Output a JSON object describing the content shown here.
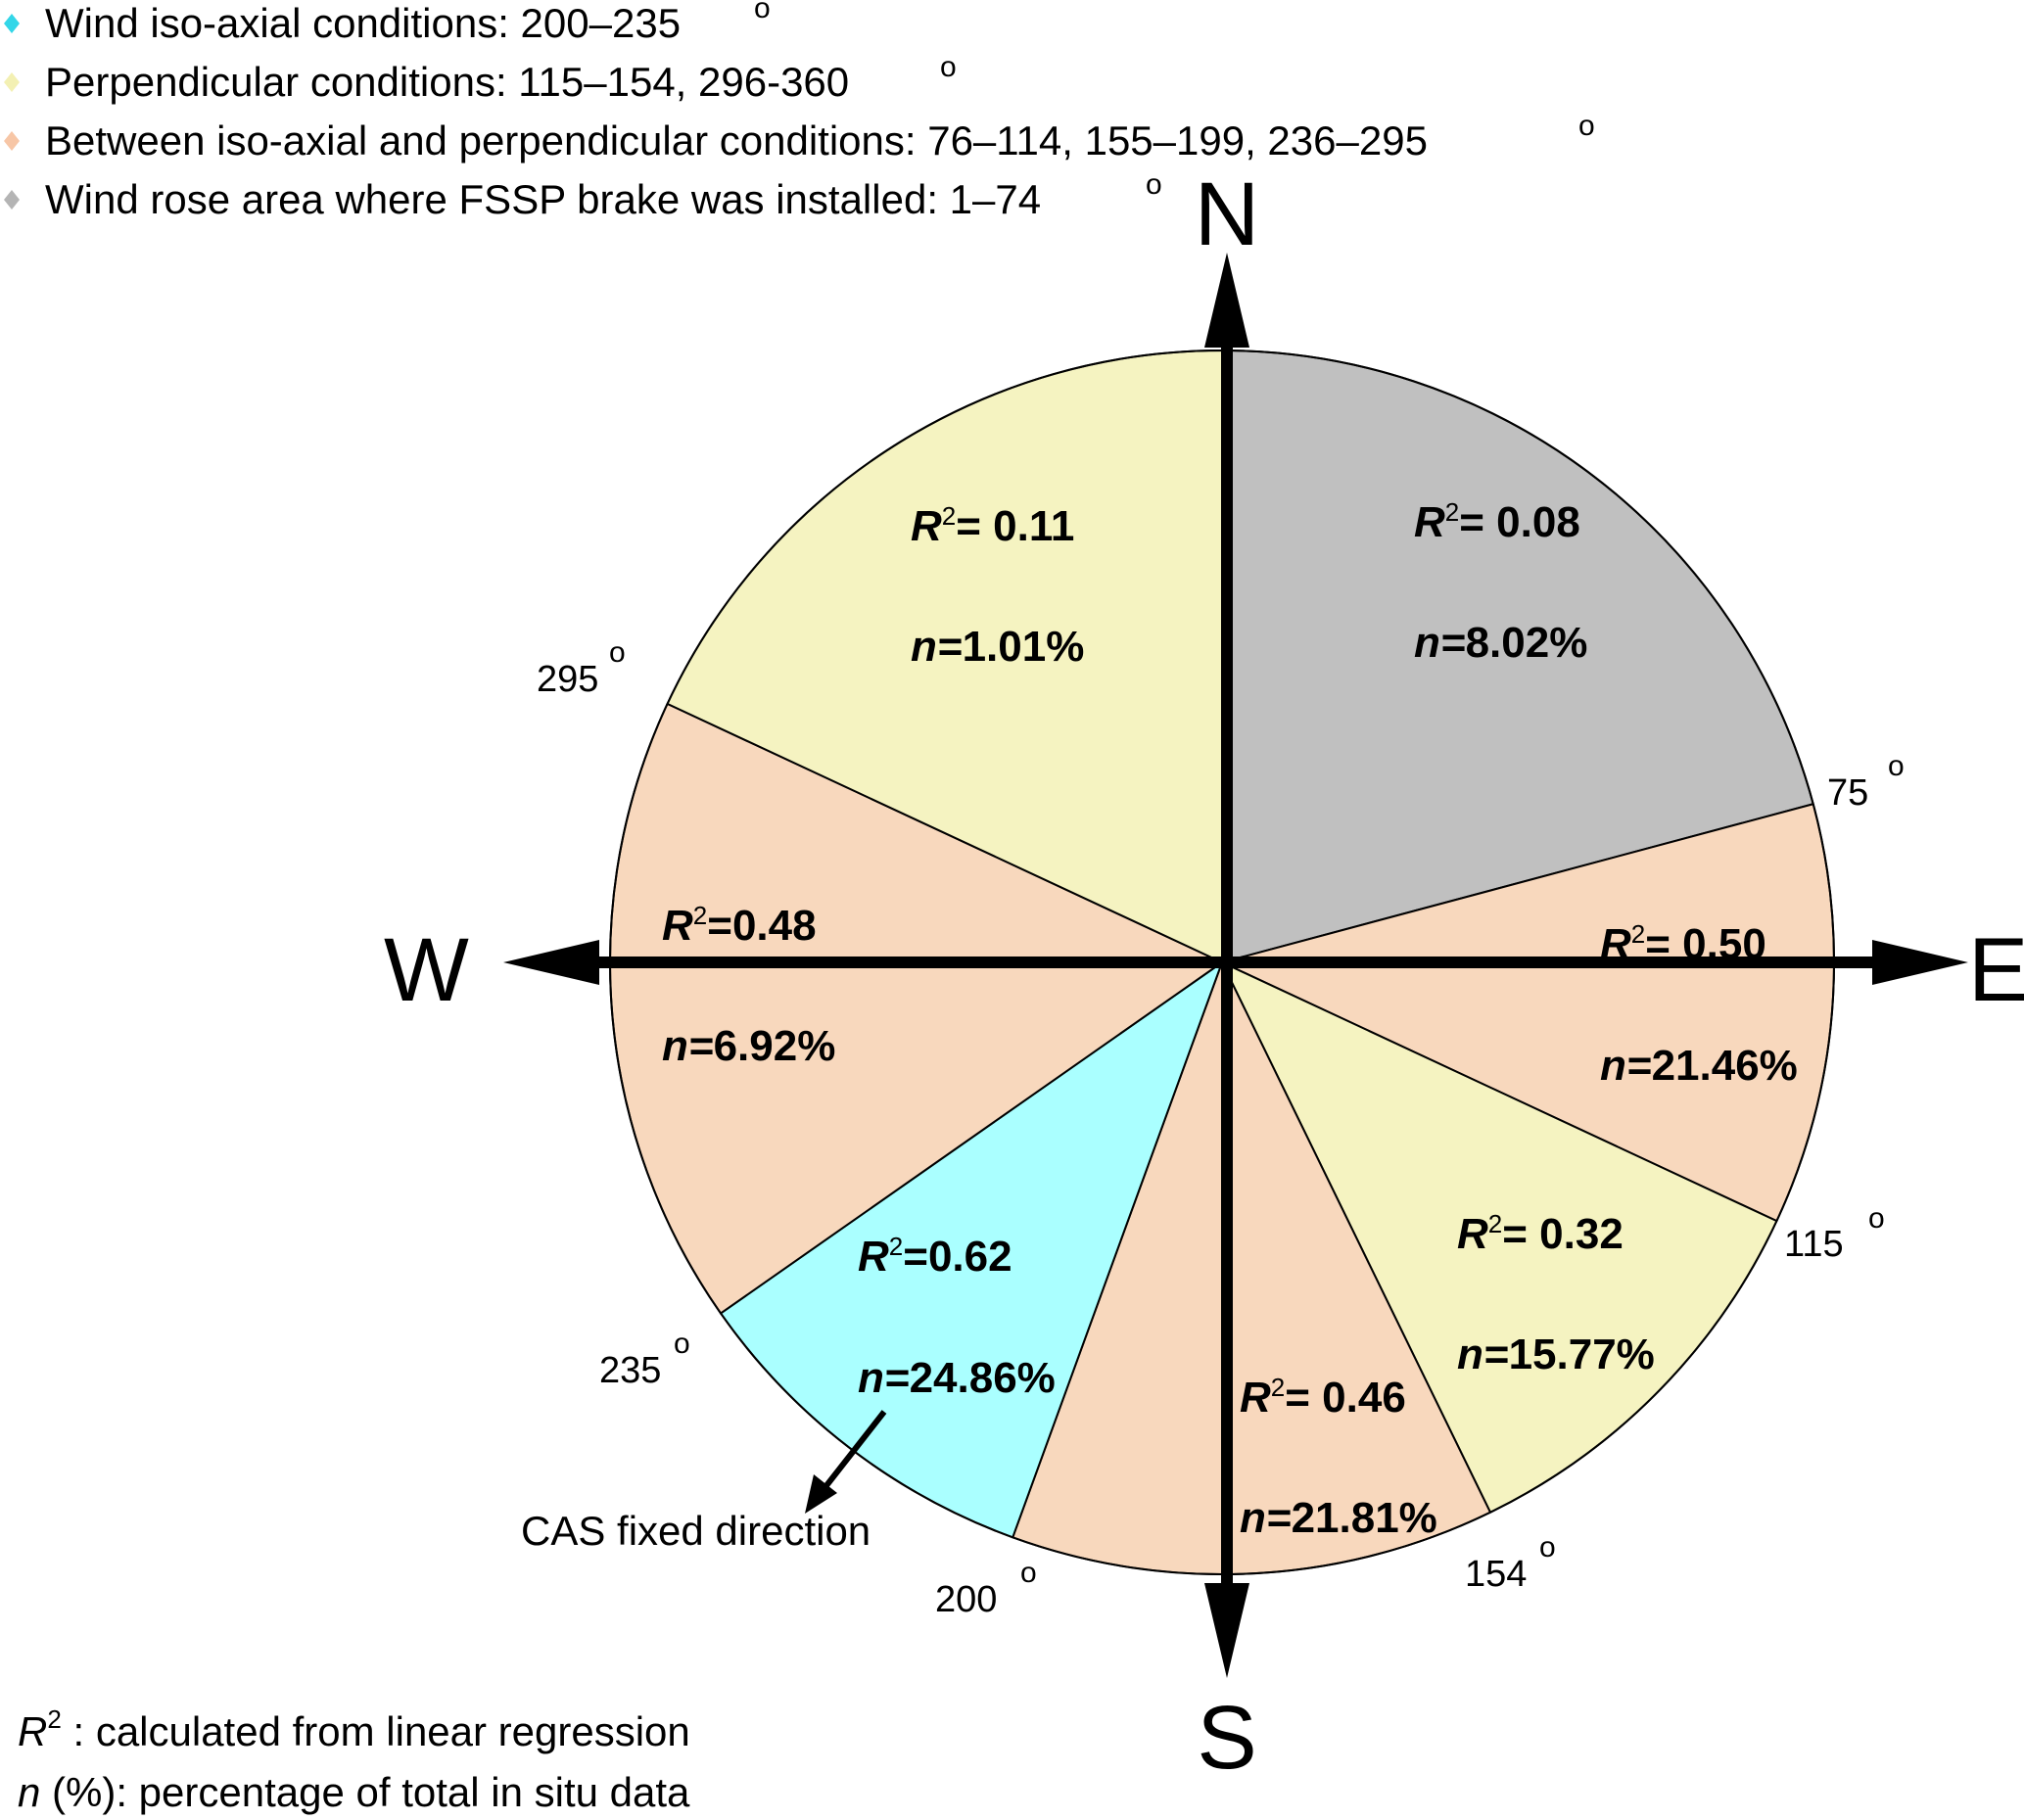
{
  "legend": [
    {
      "text": "Wind iso-axial conditions: 200–235",
      "color": "#33d6e8"
    },
    {
      "text": "Perpendicular conditions: 115–154, 296-360",
      "color": "#f3f0b3"
    },
    {
      "text": "Between iso-axial and perpendicular conditions: 76–114, 155–199, 236–295",
      "color": "#f7c6a6"
    },
    {
      "text": "Wind rose area where FSSP brake was installed: 1–74",
      "color": "#b4b4b4"
    }
  ],
  "degree_symbol": "o",
  "cardinals": {
    "n": "N",
    "e": "E",
    "s": "S",
    "w": "W"
  },
  "boundaries": [
    {
      "label": "75",
      "deg": 75
    },
    {
      "label": "115",
      "deg": 115
    },
    {
      "label": "154",
      "deg": 154
    },
    {
      "label": "200",
      "deg": 200
    },
    {
      "label": "235",
      "deg": 235
    },
    {
      "label": "295",
      "deg": 295
    }
  ],
  "sectors": [
    {
      "id": "fssp",
      "from": 0,
      "to": 75,
      "color": "#c0c0c0",
      "r2": "0.08",
      "r2_sep": "= ",
      "n": "8.02%"
    },
    {
      "id": "e",
      "from": 75,
      "to": 115,
      "color": "#f8d8bd",
      "r2": "0.50",
      "r2_sep": "= ",
      "n": "21.46%"
    },
    {
      "id": "se",
      "from": 115,
      "to": 154,
      "color": "#f5f3c1",
      "r2": "0.32",
      "r2_sep": "= ",
      "n": "15.77%"
    },
    {
      "id": "s",
      "from": 154,
      "to": 200,
      "color": "#f8d8bd",
      "r2": "0.46",
      "r2_sep": "= ",
      "n": "21.81%"
    },
    {
      "id": "sw",
      "from": 200,
      "to": 235,
      "color": "#aaffff",
      "r2": "0.62",
      "r2_sep": "=",
      "n": "24.86%"
    },
    {
      "id": "w",
      "from": 235,
      "to": 295,
      "color": "#f8d8bd",
      "r2": "0.48",
      "r2_sep": "=",
      "n": "6.92%"
    },
    {
      "id": "nw",
      "from": 295,
      "to": 360,
      "color": "#f5f3c1",
      "r2": "0.11",
      "r2_sep": "= ",
      "n": "1.01%"
    }
  ],
  "cas_label": "CAS fixed direction",
  "notes": {
    "r2_symbol": "R",
    "r2_sup": "2",
    "r2_text": " : calculated from linear regression",
    "n_symbol": "n",
    "n_text": " (%): percentage of total in situ data"
  },
  "stat_symbols": {
    "r": "R",
    "sup": "2",
    "n": "n="
  }
}
